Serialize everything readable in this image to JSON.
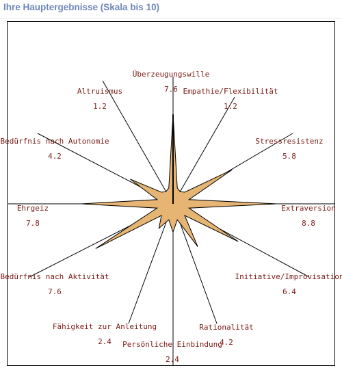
{
  "heading": "Ihre Hauptergebnisse (Skala bis 10)",
  "chart_data": {
    "type": "radar",
    "title": "Ihre Hauptergebnisse (Skala bis 10)",
    "scale_max": 10,
    "categories": [
      "Überzeugungswille",
      "Empathie/Flexibilität",
      "Stressresistenz",
      "Extraversion",
      "Initiative/Improvisation",
      "Rationalität",
      "Persönliche Einbindung",
      "Fähigkeit zur Anleitung",
      "Bedürfnis nach Aktivität",
      "Ehrgeiz",
      "Bedürfnis nach Autonomie",
      "Altruismus"
    ],
    "value_labels": [
      "7.6",
      "1.2",
      "5.8",
      "8.8",
      "6.4",
      "4.2",
      "2.4",
      "2.4",
      "7.6",
      "7.8",
      "4.2",
      "1.2"
    ],
    "values": [
      7.6,
      1.2,
      5.8,
      8.8,
      6.4,
      4.2,
      2.4,
      2.4,
      7.6,
      7.8,
      4.2,
      1.2
    ],
    "colors": {
      "fill": "#e6b573",
      "stroke": "#000000",
      "label": "#7a1a14",
      "frame": "#000000"
    }
  }
}
